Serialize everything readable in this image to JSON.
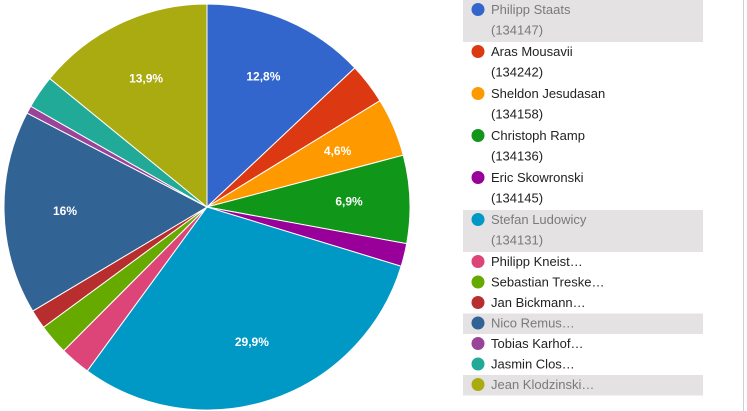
{
  "chart_data": {
    "type": "pie",
    "title": "",
    "legend_position": "right",
    "start_angle_deg": 0,
    "direction": "clockwise",
    "slices": [
      {
        "label": "Philipp Staats",
        "sub": "(134147)",
        "value": 12.8,
        "color": "#3366cc",
        "display": "12,8%",
        "highlight": true
      },
      {
        "label": "Aras Mousavii",
        "sub": "(134242)",
        "value": 3.2,
        "color": "#dc3912",
        "display": "",
        "highlight": false
      },
      {
        "label": "Sheldon Jesudasan",
        "sub": "(134158)",
        "value": 4.6,
        "color": "#ff9900",
        "display": "4,6%",
        "highlight": false
      },
      {
        "label": "Christoph Ramp",
        "sub": "(134136)",
        "value": 6.9,
        "color": "#109618",
        "display": "6,9%",
        "highlight": false
      },
      {
        "label": "Eric Skowronski",
        "sub": "(134145)",
        "value": 1.8,
        "color": "#990099",
        "display": "",
        "highlight": false
      },
      {
        "label": "Stefan Ludowicy",
        "sub": "(134131)",
        "value": 29.9,
        "color": "#0099c6",
        "display": "29,9%",
        "highlight": true
      },
      {
        "label": "Philipp Kneist…",
        "sub": "",
        "value": 2.4,
        "color": "#dd4477",
        "display": "",
        "highlight": false
      },
      {
        "label": "Sebastian Treske…",
        "sub": "",
        "value": 2.4,
        "color": "#66aa00",
        "display": "",
        "highlight": false
      },
      {
        "label": "Jan Bickmann…",
        "sub": "",
        "value": 1.5,
        "color": "#b82e2e",
        "display": "",
        "highlight": false
      },
      {
        "label": "Nico Remus…",
        "sub": "",
        "value": 16.0,
        "color": "#316395",
        "display": "16%",
        "highlight": true
      },
      {
        "label": "Tobias Karhof…",
        "sub": "",
        "value": 0.6,
        "color": "#994499",
        "display": "",
        "highlight": false
      },
      {
        "label": "Jasmin Clos…",
        "sub": "",
        "value": 2.6,
        "color": "#22aa99",
        "display": "",
        "highlight": false
      },
      {
        "label": "Jean Klodzinski…",
        "sub": "",
        "value": 13.9,
        "color": "#aaaa11",
        "display": "13,9%",
        "highlight": true
      }
    ]
  }
}
